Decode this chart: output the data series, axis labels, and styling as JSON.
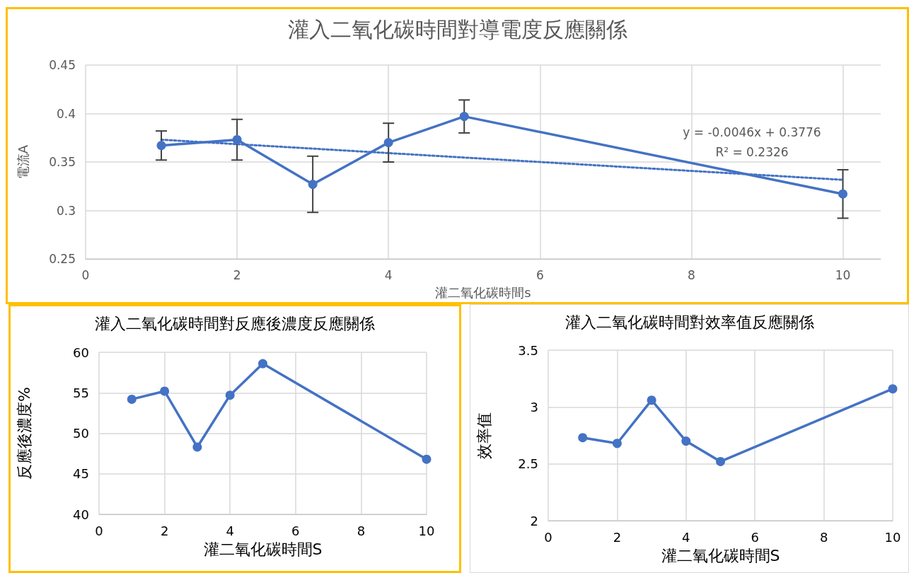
{
  "chart_data": [
    {
      "type": "line",
      "title": "灌入二氧化碳時間對導電度反應關係",
      "xlabel": "灌二氧化碳時間s",
      "ylabel": "電流A",
      "x": [
        1,
        2,
        3,
        4,
        5,
        10
      ],
      "xlim": [
        0,
        10.5
      ],
      "xticks": [
        0,
        2,
        4,
        6,
        8,
        10
      ],
      "ylim": [
        0.25,
        0.45
      ],
      "yticks": [
        0.25,
        0.3,
        0.35,
        0.4,
        0.45
      ],
      "grid": true,
      "marker": "circle",
      "line_style": "solid",
      "series": [
        {
          "color": "#4472c4",
          "values": [
            0.367,
            0.373,
            0.327,
            0.37,
            0.397,
            0.317
          ],
          "errors": [
            0.015,
            0.021,
            0.029,
            0.02,
            0.017,
            0.025
          ]
        },
        {
          "type": "line",
          "color": "#4472c4",
          "x": [
            1,
            10
          ],
          "values": [
            0.373,
            0.3316
          ],
          "marker": "none",
          "line_style": "dotted"
        }
      ],
      "annotations": [
        "y = -0.0046x + 0.3776",
        "R² = 0.2326"
      ]
    },
    {
      "type": "line",
      "title": "灌入二氧化碳時間對反應後濃度反應關係",
      "xlabel": "灌二氧化碳時間S",
      "ylabel": "反應後濃度%",
      "x": [
        1,
        2,
        3,
        4,
        5,
        10
      ],
      "xlim": [
        0,
        10
      ],
      "xticks": [
        0,
        2,
        4,
        6,
        8,
        10
      ],
      "ylim": [
        40,
        60
      ],
      "yticks": [
        40,
        45,
        50,
        55,
        60
      ],
      "grid": true,
      "marker": "circle",
      "line_style": "solid",
      "series": [
        {
          "color": "#4472c4",
          "values": [
            54.2,
            55.2,
            48.3,
            54.7,
            58.6,
            46.8
          ]
        }
      ]
    },
    {
      "type": "line",
      "title": "灌入二氧化碳時間對效率值反應關係",
      "xlabel": "灌二氧化碳時間S",
      "ylabel": "效率值",
      "x": [
        1,
        2,
        3,
        4,
        5,
        10
      ],
      "xlim": [
        0,
        10
      ],
      "xticks": [
        0,
        2,
        4,
        6,
        8,
        10
      ],
      "ylim": [
        2,
        3.5
      ],
      "yticks": [
        2,
        2.5,
        3,
        3.5
      ],
      "grid": true,
      "marker": "circle",
      "line_style": "solid",
      "series": [
        {
          "color": "#4472c4",
          "values": [
            2.73,
            2.68,
            3.06,
            2.7,
            2.52,
            3.16
          ]
        }
      ]
    }
  ]
}
